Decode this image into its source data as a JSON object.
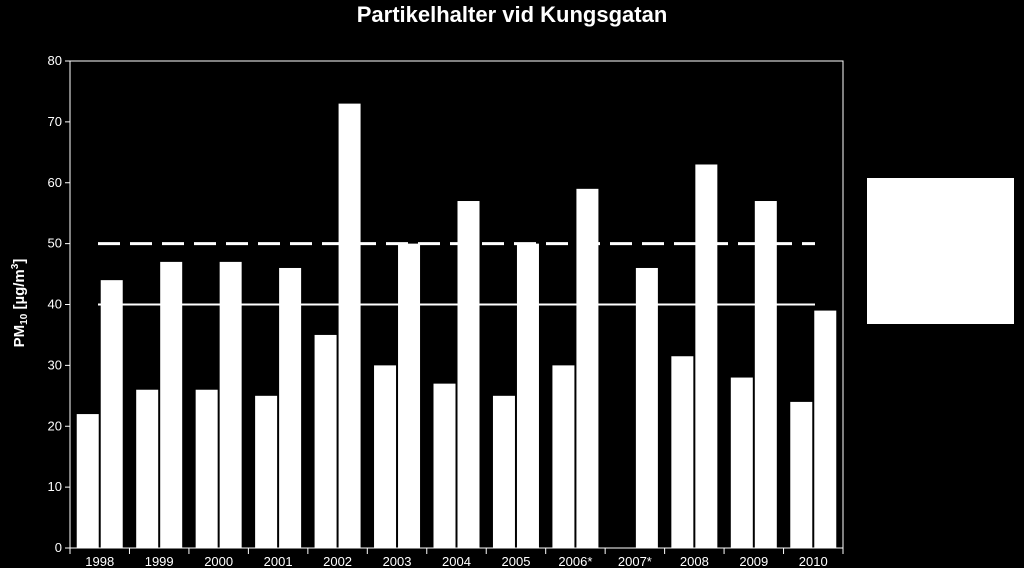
{
  "chart_data": {
    "type": "bar",
    "title": "Partikelhalter vid Kungsgatan",
    "ylabel_main": "PM",
    "ylabel_sub": "10",
    "ylabel_unit": " [µg/m",
    "ylabel_sup": "3",
    "ylabel_close": "]",
    "xlabel": "",
    "ylim": [
      0,
      80
    ],
    "yticks": [
      0,
      10,
      20,
      30,
      40,
      50,
      60,
      70,
      80
    ],
    "categories": [
      "1998",
      "1999",
      "2000",
      "2001",
      "2002",
      "2003",
      "2004",
      "2005",
      "2006*",
      "2007*",
      "2008",
      "2009",
      "2010"
    ],
    "series": [
      {
        "values": [
          22,
          26,
          26,
          25,
          35,
          30,
          27,
          25,
          30,
          null,
          31.5,
          28,
          24
        ]
      },
      {
        "values": [
          44,
          47,
          47,
          46,
          73,
          50,
          57,
          50,
          59,
          46,
          63,
          57,
          39
        ]
      }
    ],
    "reference_lines": [
      {
        "value": 50,
        "style": "dashed"
      },
      {
        "value": 40,
        "style": "solid"
      }
    ],
    "legend": {
      "position": "right",
      "entries": []
    },
    "grid": false,
    "colors": {
      "background": "#000000",
      "bars": "#ffffff",
      "axes": "#ffffff",
      "text": "#ffffff"
    }
  }
}
